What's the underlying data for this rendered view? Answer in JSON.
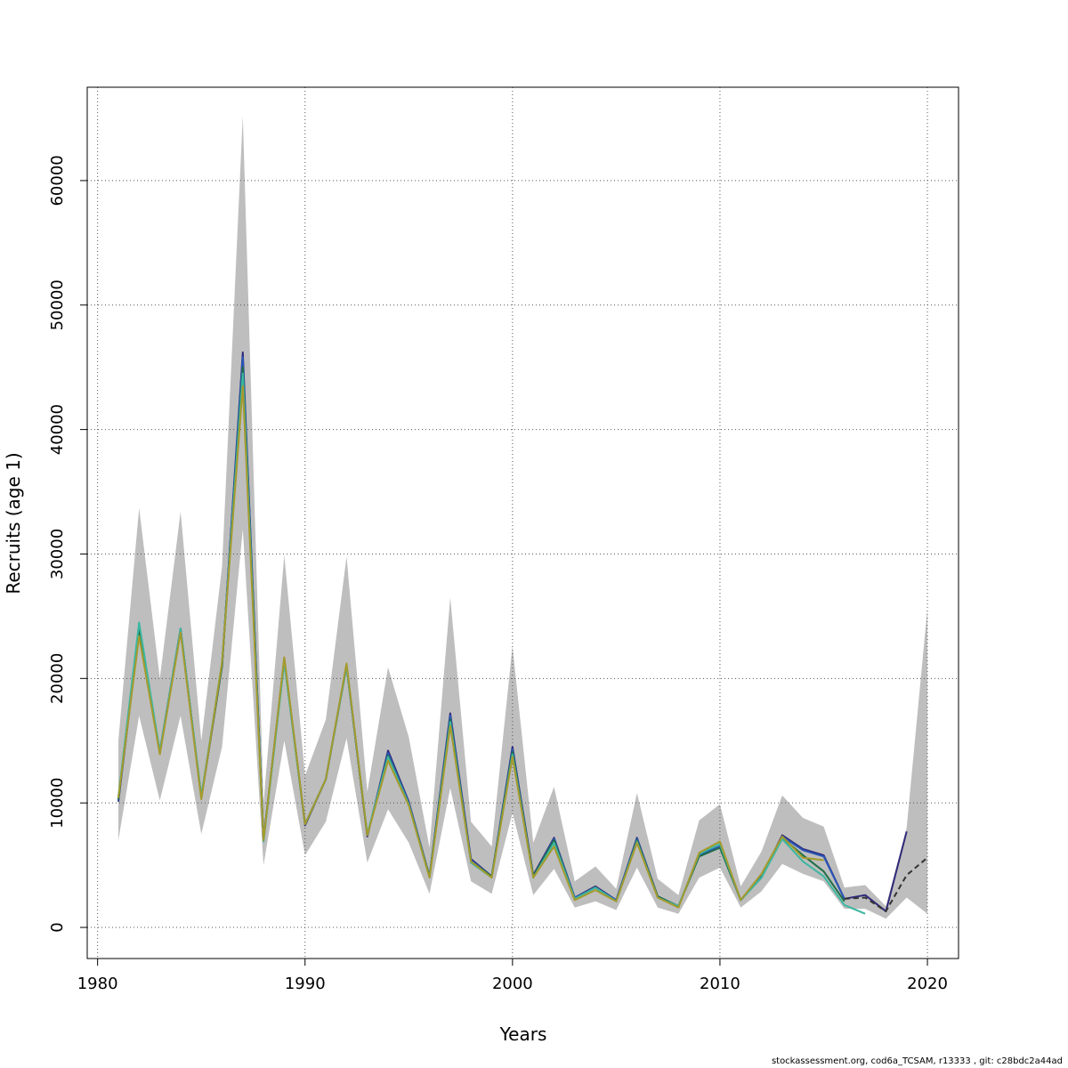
{
  "chart_data": {
    "type": "line",
    "title": "",
    "xlabel": "Years",
    "ylabel": "Recruits (age 1)",
    "xlim": [
      1979.5,
      2021.5
    ],
    "ylim": [
      -2500,
      67500
    ],
    "x_ticks": [
      1980,
      1990,
      2000,
      2010,
      2020
    ],
    "y_ticks": [
      0,
      10000,
      20000,
      30000,
      40000,
      50000,
      60000
    ],
    "grid": true,
    "legend": "none",
    "confidence_band": {
      "color": "#bebebe",
      "x": [
        1981,
        1982,
        1983,
        1984,
        1985,
        1986,
        1987,
        1988,
        1989,
        1990,
        1991,
        1992,
        1993,
        1994,
        1995,
        1996,
        1997,
        1998,
        1999,
        2000,
        2001,
        2002,
        2003,
        2004,
        2005,
        2006,
        2007,
        2008,
        2009,
        2010,
        2011,
        2012,
        2013,
        2014,
        2015,
        2016,
        2017,
        2018,
        2019,
        2020
      ],
      "lower": [
        7000,
        17000,
        10200,
        17000,
        7500,
        14500,
        32000,
        5000,
        15000,
        5800,
        8500,
        15200,
        5200,
        9500,
        6800,
        2700,
        11200,
        3700,
        2700,
        9200,
        2600,
        4700,
        1600,
        2100,
        1400,
        4800,
        1600,
        1100,
        4000,
        4800,
        1600,
        2900,
        5100,
        4300,
        3700,
        1500,
        1500,
        700,
        2400,
        1100
      ],
      "upper": [
        15000,
        33700,
        20000,
        33400,
        15000,
        29000,
        65200,
        10000,
        29900,
        12200,
        16700,
        29800,
        10900,
        20900,
        15300,
        6400,
        26500,
        8500,
        6500,
        22600,
        6800,
        11300,
        3700,
        4900,
        3100,
        10800,
        3900,
        2600,
        8600,
        9900,
        3300,
        6100,
        10600,
        8800,
        8100,
        3200,
        3400,
        1700,
        8000,
        25600
      ]
    },
    "x": [
      1981,
      1982,
      1983,
      1984,
      1985,
      1986,
      1987,
      1988,
      1989,
      1990,
      1991,
      1992,
      1993,
      1994,
      1995,
      1996,
      1997,
      1998,
      1999,
      2000,
      2001,
      2002,
      2003,
      2004,
      2005,
      2006,
      2007,
      2008,
      2009,
      2010,
      2011,
      2012,
      2013,
      2014,
      2015,
      2016,
      2017,
      2018,
      2019,
      2020
    ],
    "series": [
      {
        "color": "#2e2a7a",
        "dashed": false,
        "values": [
          10100,
          23800,
          14100,
          24000,
          10400,
          21000,
          46200,
          7000,
          21600,
          8200,
          11900,
          21000,
          7300,
          14200,
          10100,
          4100,
          17200,
          5500,
          4100,
          14500,
          4200,
          7200,
          2400,
          3300,
          2200,
          7200,
          2500,
          1700,
          5800,
          6500,
          2200,
          4100,
          7400,
          6300,
          5800,
          2300,
          2600,
          1300,
          7700,
          null
        ]
      },
      {
        "color": "#2a56b8",
        "dashed": false,
        "values": [
          10200,
          23900,
          14100,
          24000,
          10400,
          21100,
          45800,
          7100,
          21500,
          8300,
          11900,
          21100,
          7400,
          14000,
          10000,
          4100,
          17000,
          5400,
          4100,
          14300,
          4100,
          7100,
          2400,
          3200,
          2200,
          7100,
          2500,
          1700,
          5800,
          6500,
          2200,
          4100,
          7300,
          6200,
          5700,
          2300,
          null,
          null,
          null,
          null
        ]
      },
      {
        "color": "#1f6e48",
        "dashed": false,
        "values": [
          10300,
          23900,
          14000,
          23900,
          10500,
          21000,
          45000,
          7000,
          21400,
          8300,
          11900,
          21000,
          7400,
          13800,
          9900,
          4100,
          16700,
          5300,
          4100,
          14100,
          4100,
          7000,
          2300,
          3200,
          2100,
          7000,
          2500,
          1700,
          5700,
          6400,
          2200,
          4000,
          7200,
          5800,
          4500,
          2100,
          null,
          null,
          null,
          null
        ]
      },
      {
        "color": "#3bb7a0",
        "dashed": false,
        "values": [
          10500,
          24500,
          14100,
          24000,
          10500,
          21300,
          44500,
          6900,
          21300,
          8300,
          11900,
          21000,
          7500,
          13700,
          9900,
          4000,
          16500,
          5200,
          4000,
          13900,
          4000,
          6800,
          2300,
          3200,
          2100,
          6900,
          2400,
          1700,
          5900,
          6700,
          2200,
          4000,
          7100,
          5300,
          4100,
          1800,
          1100,
          null,
          null,
          null
        ]
      },
      {
        "color": "#a59a2c",
        "dashed": false,
        "values": [
          10400,
          23400,
          13900,
          23700,
          10300,
          21300,
          43500,
          7000,
          21700,
          8300,
          11900,
          21200,
          7400,
          13400,
          9800,
          4000,
          16200,
          5300,
          4000,
          13700,
          4000,
          6500,
          2200,
          3000,
          2100,
          6800,
          2400,
          1600,
          6000,
          6900,
          2200,
          4300,
          7300,
          5600,
          5400,
          null,
          null,
          null,
          null,
          null
        ]
      },
      {
        "color": "#333333",
        "dashed": true,
        "values": [
          null,
          null,
          null,
          null,
          null,
          null,
          null,
          null,
          null,
          null,
          null,
          null,
          null,
          null,
          null,
          null,
          null,
          null,
          null,
          null,
          null,
          null,
          null,
          null,
          null,
          null,
          null,
          null,
          null,
          null,
          null,
          null,
          null,
          null,
          null,
          2300,
          2400,
          1300,
          4200,
          5600
        ]
      }
    ]
  },
  "footnote": "stockassessment.org, cod6a_TCSAM, r13333 , git: c28bdc2a44ad"
}
